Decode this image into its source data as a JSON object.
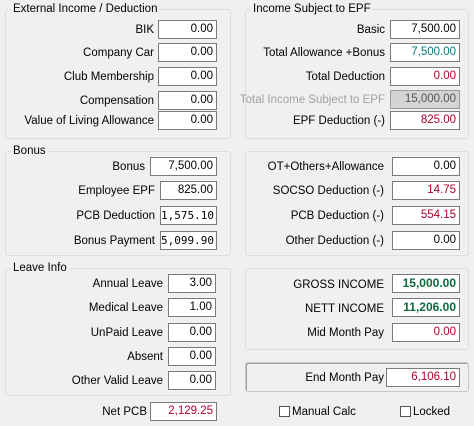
{
  "external": {
    "title": "External Income / Deduction",
    "rows": [
      {
        "label": "BIK",
        "value": "0.00"
      },
      {
        "label": "Company Car",
        "value": "0.00"
      },
      {
        "label": "Club Membership",
        "value": "0.00"
      },
      {
        "label": "Compensation",
        "value": "0.00"
      },
      {
        "label": "Value of Living Allowance",
        "value": "0.00"
      }
    ]
  },
  "epf": {
    "title": "Income Subject to EPF",
    "rows": [
      {
        "label": "Basic",
        "value": "7,500.00"
      },
      {
        "label": "Total Allowance +Bonus",
        "value": "7,500.00"
      },
      {
        "label": "Total Deduction",
        "value": "0.00"
      },
      {
        "label": "Total Income Subject to EPF",
        "value": "15,000.00"
      },
      {
        "label": "EPF Deduction (-)",
        "value": "825.00"
      }
    ]
  },
  "bonus": {
    "title": "Bonus",
    "rows": [
      {
        "label": "Bonus",
        "value": "7,500.00"
      },
      {
        "label": "Employee EPF",
        "value": "825.00"
      },
      {
        "label": "PCB Deduction",
        "value": "1,575.10"
      },
      {
        "label": "Bonus Payment",
        "value": "5,099.90"
      }
    ]
  },
  "deductions": {
    "rows": [
      {
        "label": "OT+Others+Allowance",
        "value": "0.00"
      },
      {
        "label": "SOCSO Deduction (-)",
        "value": "14.75"
      },
      {
        "label": "PCB Deduction (-)",
        "value": "554.15"
      },
      {
        "label": "Other Deduction (-)",
        "value": "0.00"
      }
    ]
  },
  "leave": {
    "title": "Leave Info",
    "rows": [
      {
        "label": "Annual Leave",
        "value": "3.00"
      },
      {
        "label": "Medical Leave",
        "value": "1.00"
      },
      {
        "label": "UnPaid Leave",
        "value": "0.00"
      },
      {
        "label": "Absent",
        "value": "0.00"
      },
      {
        "label": "Other Valid Leave",
        "value": "0.00"
      }
    ]
  },
  "income": {
    "rows": [
      {
        "label": "GROSS INCOME",
        "value": "15,000.00"
      },
      {
        "label": "NETT INCOME",
        "value": "11,206.00"
      },
      {
        "label": "Mid Month Pay",
        "value": "0.00"
      }
    ]
  },
  "end_month": {
    "label": "End Month Pay",
    "value": "6,106.10"
  },
  "net_pcb": {
    "label": "Net PCB",
    "value": "2,129.25"
  },
  "manual_calc": {
    "label": "Manual Calc",
    "checked": false
  },
  "locked": {
    "label": "Locked",
    "checked": false
  }
}
